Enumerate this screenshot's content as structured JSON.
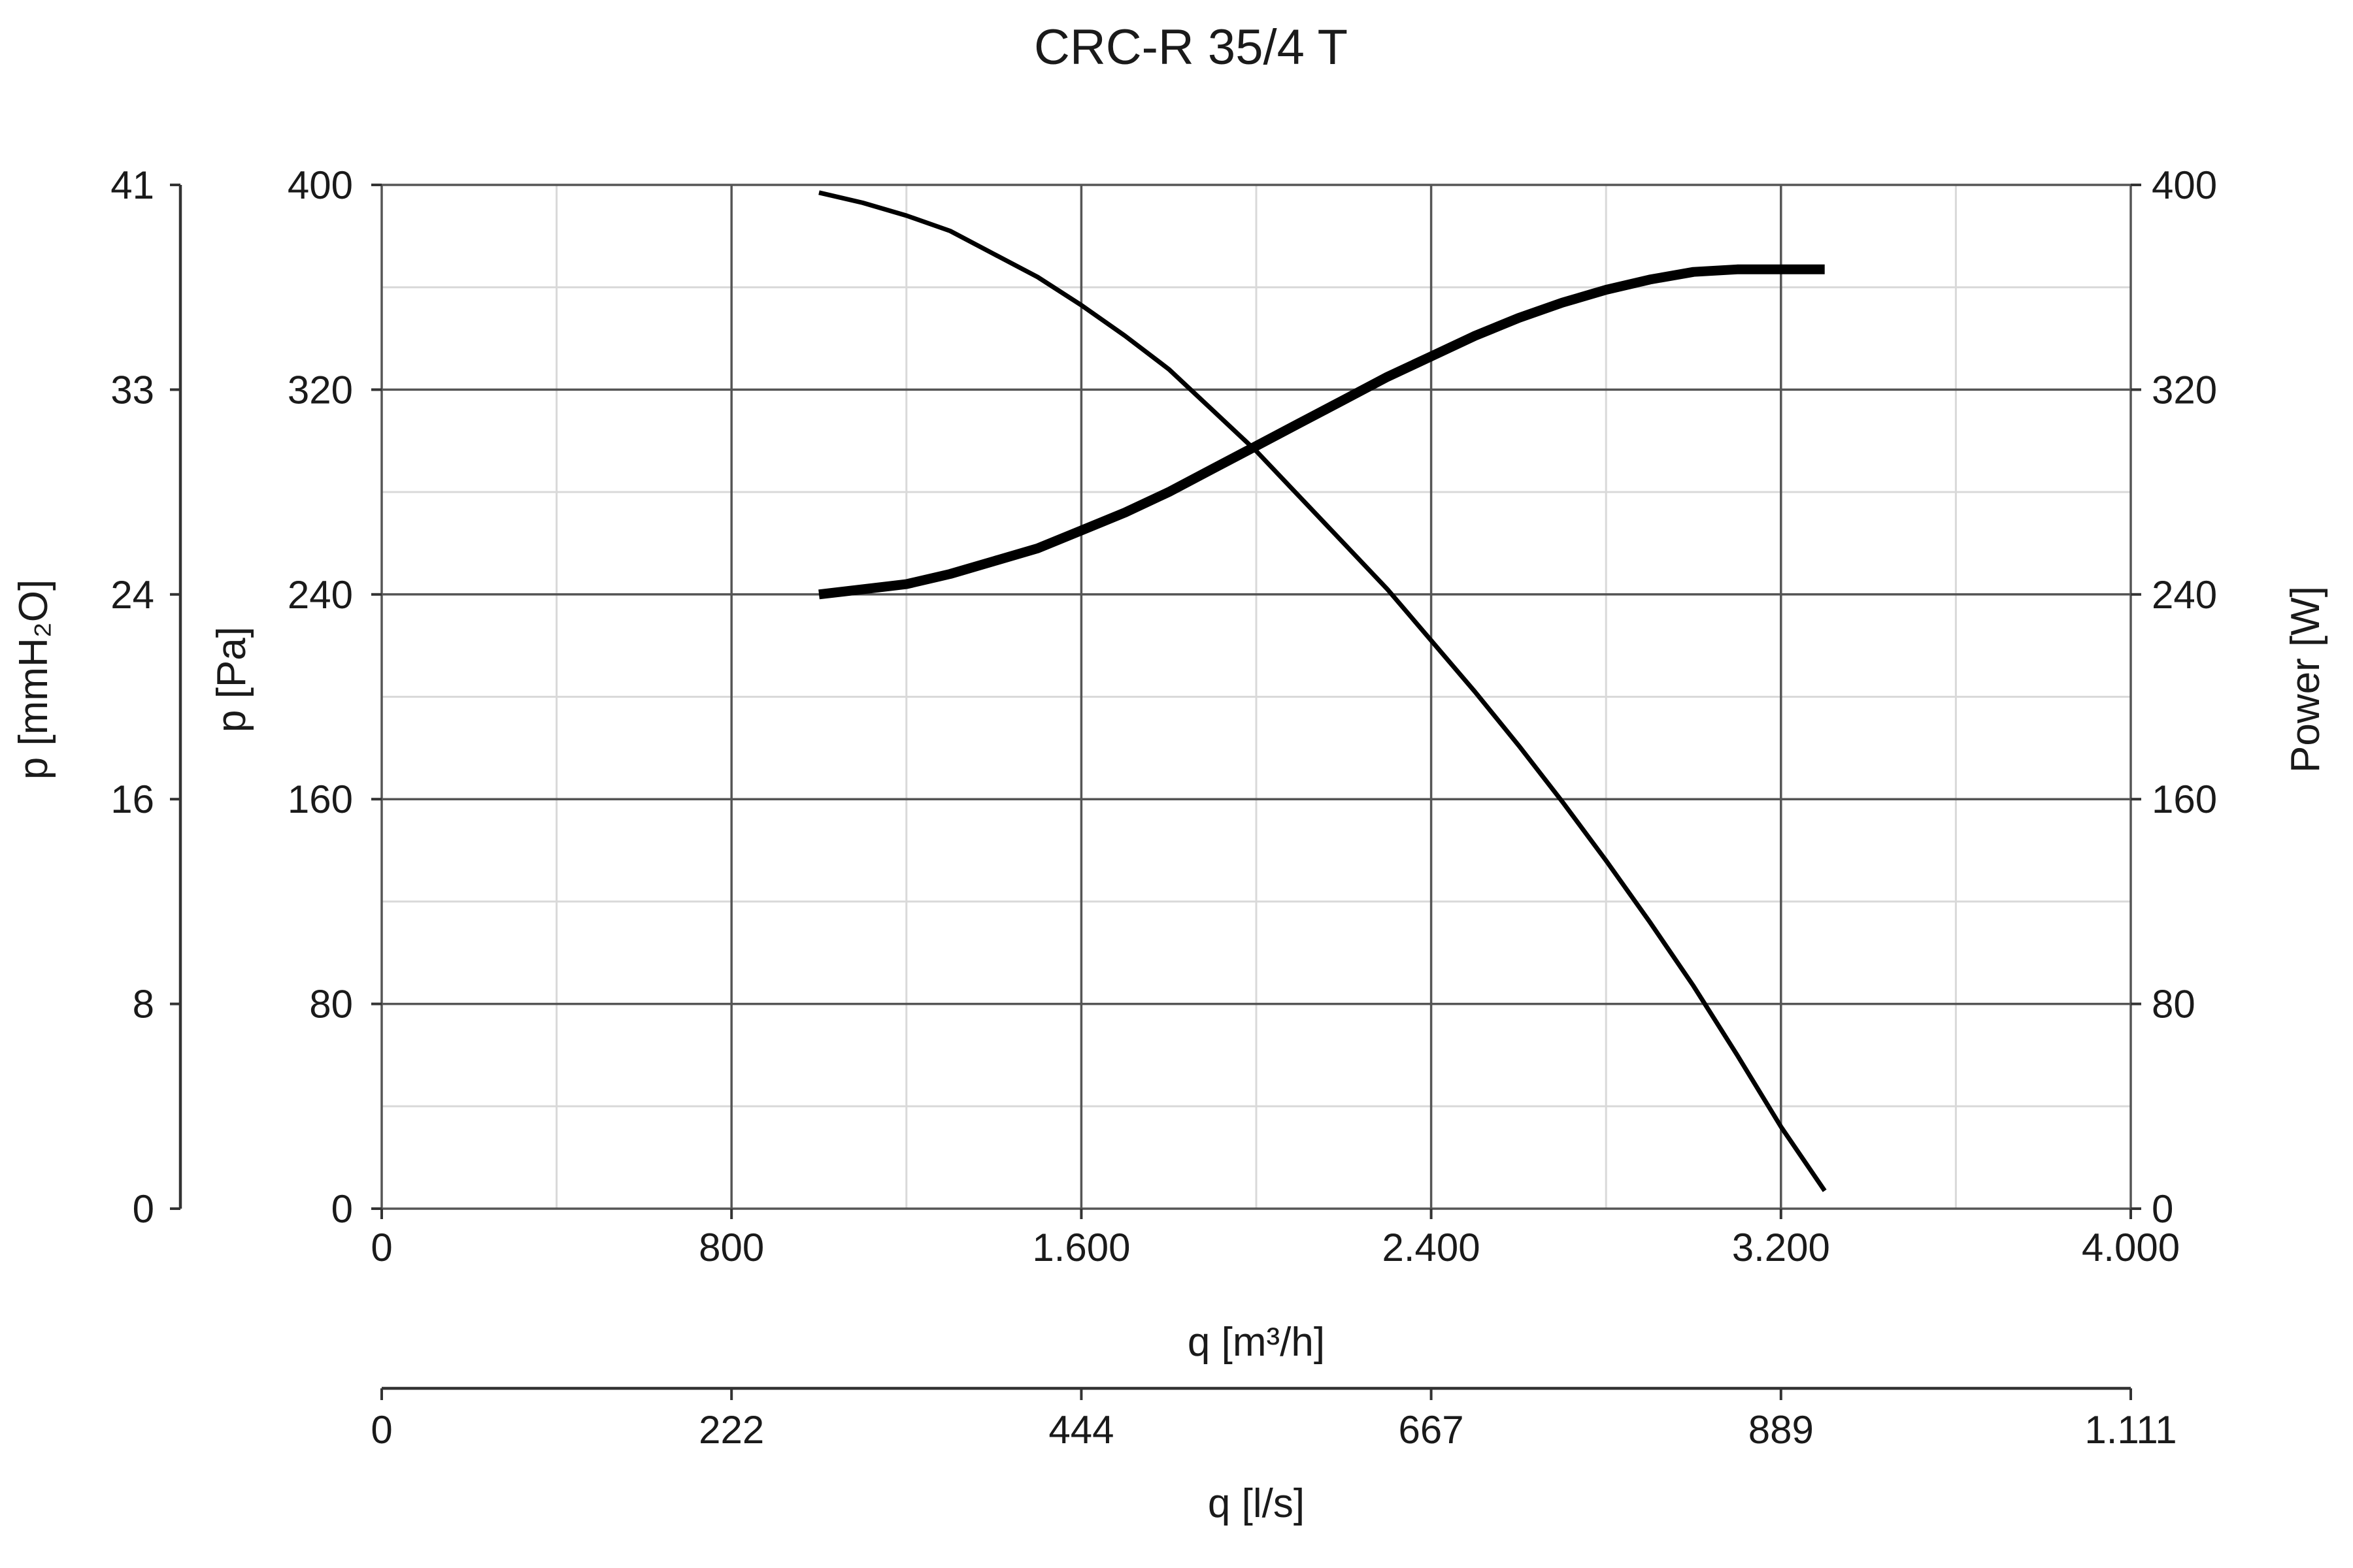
{
  "chart_data": {
    "type": "line",
    "title": "CRC-R 35/4 T",
    "x": {
      "label": "q [m³/h]",
      "range": [
        0,
        4000
      ],
      "ticks": [
        0,
        800,
        1600,
        2400,
        3200,
        4000
      ],
      "tick_labels": [
        "0",
        "800",
        "1.600",
        "2.400",
        "3.200",
        "4.000"
      ]
    },
    "x2": {
      "label": "q [l/s]",
      "tick_labels": [
        "0",
        "222",
        "444",
        "667",
        "889",
        "1.111"
      ]
    },
    "y_left": {
      "label": "p [Pa]",
      "range": [
        0,
        400
      ],
      "ticks": [
        0,
        80,
        160,
        240,
        320,
        400
      ],
      "tick_labels": [
        "0",
        "80",
        "160",
        "240",
        "320",
        "400"
      ]
    },
    "y_left_outer": {
      "label": "p [mmH₂O]",
      "tick_labels": [
        "0",
        "8",
        "16",
        "24",
        "33",
        "41"
      ]
    },
    "y_right": {
      "label": "Power [W]",
      "range": [
        0,
        400
      ],
      "ticks": [
        0,
        80,
        160,
        240,
        320,
        400
      ],
      "tick_labels": [
        "0",
        "80",
        "160",
        "240",
        "320",
        "400"
      ]
    },
    "grid": true,
    "series": [
      {
        "axis": "left",
        "points": [
          [
            1000,
            397
          ],
          [
            1100,
            393
          ],
          [
            1200,
            388
          ],
          [
            1300,
            382
          ],
          [
            1400,
            373
          ],
          [
            1500,
            364
          ],
          [
            1600,
            353
          ],
          [
            1700,
            341
          ],
          [
            1800,
            328
          ],
          [
            1900,
            312
          ],
          [
            2000,
            296
          ],
          [
            2100,
            278
          ],
          [
            2200,
            260
          ],
          [
            2300,
            242
          ],
          [
            2400,
            222
          ],
          [
            2500,
            202
          ],
          [
            2600,
            181
          ],
          [
            2700,
            159
          ],
          [
            2800,
            136
          ],
          [
            2900,
            112
          ],
          [
            3000,
            87
          ],
          [
            3100,
            60
          ],
          [
            3200,
            32
          ],
          [
            3300,
            7
          ]
        ]
      },
      {
        "axis": "right",
        "points": [
          [
            1000,
            240
          ],
          [
            1100,
            242
          ],
          [
            1200,
            244
          ],
          [
            1300,
            248
          ],
          [
            1400,
            253
          ],
          [
            1500,
            258
          ],
          [
            1600,
            265
          ],
          [
            1700,
            272
          ],
          [
            1800,
            280
          ],
          [
            1900,
            289
          ],
          [
            2000,
            298
          ],
          [
            2100,
            307
          ],
          [
            2200,
            316
          ],
          [
            2300,
            325
          ],
          [
            2400,
            333
          ],
          [
            2500,
            341
          ],
          [
            2600,
            348
          ],
          [
            2700,
            354
          ],
          [
            2800,
            359
          ],
          [
            2900,
            363
          ],
          [
            3000,
            366
          ],
          [
            3100,
            367
          ],
          [
            3200,
            367
          ],
          [
            3300,
            367
          ]
        ]
      }
    ]
  }
}
